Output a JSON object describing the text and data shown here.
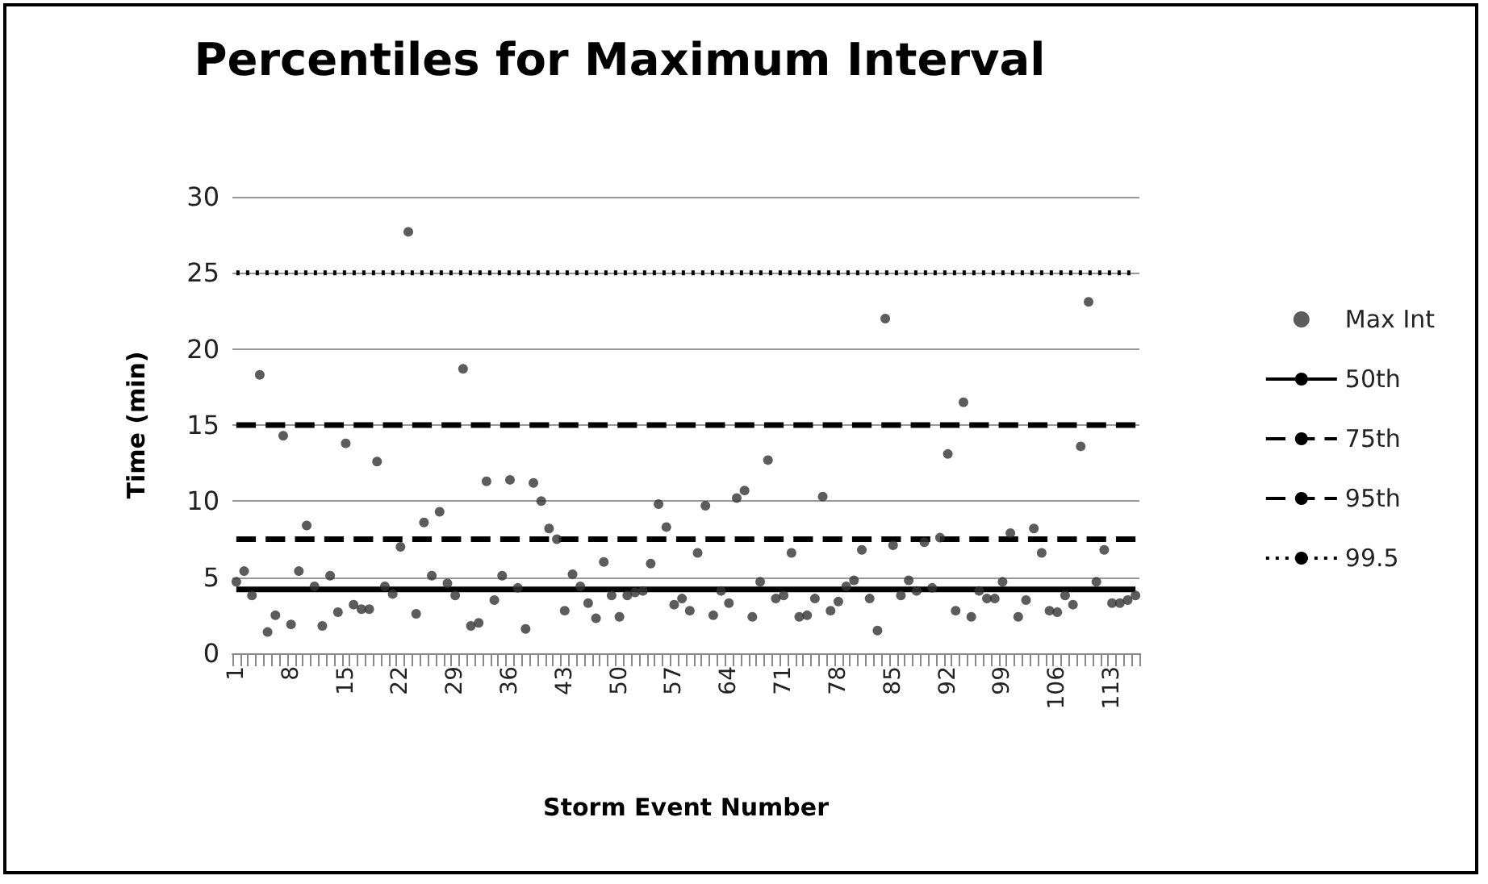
{
  "chart_data": {
    "type": "scatter",
    "title": "Percentiles for Maximum Interval",
    "xlabel": "Storm Event Number",
    "ylabel": "Time (min)",
    "categories": [
      "1",
      null,
      null,
      null,
      null,
      null,
      null,
      "8",
      null,
      null,
      null,
      null,
      null,
      null,
      "15",
      null,
      null,
      null,
      null,
      null,
      null,
      "22",
      null,
      null,
      null,
      null,
      null,
      null,
      "29",
      null,
      null,
      null,
      null,
      null,
      null,
      "36",
      null,
      null,
      null,
      null,
      null,
      null,
      "43",
      null,
      null,
      null,
      null,
      null,
      null,
      "50",
      null,
      null,
      null,
      null,
      null,
      null,
      "57",
      null,
      null,
      null,
      null,
      null,
      null,
      "64",
      null,
      null,
      null,
      null,
      null,
      null,
      "71",
      null,
      null,
      null,
      null,
      null,
      null,
      "78",
      null,
      null,
      null,
      null,
      null,
      null,
      "85",
      null,
      null,
      null,
      null,
      null,
      null,
      "92",
      null,
      null,
      null,
      null,
      null,
      null,
      "99",
      null,
      null,
      null,
      null,
      null,
      null,
      "106",
      null,
      null,
      null,
      null,
      null,
      null,
      "113",
      null,
      null,
      null
    ],
    "ylim": [
      0,
      30
    ],
    "yticks": [
      0,
      5,
      10,
      15,
      20,
      25,
      30
    ],
    "grid": "y",
    "legend": "right",
    "marker": "circle",
    "series": [
      {
        "name": "Max Int",
        "type": "scatter",
        "color": "#333333",
        "values": [
          4.7,
          5.4,
          3.8,
          18.3,
          1.4,
          2.5,
          14.3,
          1.9,
          5.4,
          8.4,
          4.4,
          1.8,
          5.1,
          2.7,
          13.8,
          3.2,
          2.9,
          2.9,
          12.6,
          4.4,
          3.9,
          7.0,
          27.7,
          2.6,
          8.6,
          5.1,
          9.3,
          4.6,
          3.8,
          18.7,
          1.8,
          2.0,
          11.3,
          3.5,
          5.1,
          11.4,
          4.3,
          1.6,
          11.2,
          10.0,
          8.2,
          7.5,
          2.8,
          5.2,
          4.4,
          3.3,
          2.3,
          6.0,
          3.8,
          2.4,
          3.8,
          4.0,
          4.1,
          5.9,
          9.8,
          8.3,
          3.2,
          3.6,
          2.8,
          6.6,
          9.7,
          2.5,
          4.1,
          3.3,
          10.2,
          10.7,
          2.4,
          4.7,
          12.7,
          3.6,
          3.8,
          6.6,
          2.4,
          2.5,
          3.6,
          10.3,
          2.8,
          3.4,
          4.4,
          4.8,
          6.8,
          3.6,
          1.5,
          22.0,
          7.1,
          3.8,
          4.8,
          4.1,
          7.3,
          4.3,
          7.6,
          13.1,
          2.8,
          16.5,
          2.4,
          4.1,
          3.6,
          3.6,
          4.7,
          7.9,
          2.4,
          3.5,
          8.2,
          6.6,
          2.8,
          2.7,
          3.8,
          3.2,
          13.6,
          23.1,
          4.7,
          6.8,
          3.3,
          3.3,
          3.5,
          3.8
        ]
      },
      {
        "name": "50th",
        "type": "line",
        "color": "#000000",
        "line_style": "solid",
        "marker": "none",
        "values": [
          4.2,
          4.2,
          4.2,
          4.2,
          4.2,
          4.2,
          4.2,
          4.2,
          4.2,
          4.2,
          4.2,
          4.2,
          4.2,
          4.2,
          4.2,
          4.2,
          4.2,
          4.2,
          4.2,
          4.2,
          4.2,
          4.2,
          4.2,
          4.2,
          4.2,
          4.2,
          4.2,
          4.2,
          4.2,
          4.2,
          4.2,
          4.2,
          4.2,
          4.2,
          4.2,
          4.2,
          4.2,
          4.2,
          4.2,
          4.2,
          4.2,
          4.2,
          4.2,
          4.2,
          4.2,
          4.2,
          4.2,
          4.2,
          4.2,
          4.2,
          4.2,
          4.2,
          4.2,
          4.2,
          4.2,
          4.2,
          4.2,
          4.2,
          4.2,
          4.2,
          4.2,
          4.2,
          4.2,
          4.2,
          4.2,
          4.2,
          4.2,
          4.2,
          4.2,
          4.2,
          4.2,
          4.2,
          4.2,
          4.2,
          4.2,
          4.2,
          4.2,
          4.2,
          4.2,
          4.2,
          4.2,
          4.2,
          4.2,
          4.2,
          4.2,
          4.2,
          4.2,
          4.2,
          4.2,
          4.2,
          4.2,
          4.2,
          4.2,
          4.2,
          4.2,
          4.2,
          4.2,
          4.2,
          4.2,
          4.2,
          4.2,
          4.2,
          4.2,
          4.2,
          4.2,
          4.2,
          4.2,
          4.2,
          4.2,
          4.2,
          4.2,
          4.2,
          4.2,
          4.2,
          4.2,
          4.2
        ]
      },
      {
        "name": "75th",
        "type": "line",
        "color": "#000000",
        "line_style": "dashed",
        "marker": "none",
        "values": [
          7.5,
          7.5,
          7.5,
          7.5,
          7.5,
          7.5,
          7.5,
          7.5,
          7.5,
          7.5,
          7.5,
          7.5,
          7.5,
          7.5,
          7.5,
          7.5,
          7.5,
          7.5,
          7.5,
          7.5,
          7.5,
          7.5,
          7.5,
          7.5,
          7.5,
          7.5,
          7.5,
          7.5,
          7.5,
          7.5,
          7.5,
          7.5,
          7.5,
          7.5,
          7.5,
          7.5,
          7.5,
          7.5,
          7.5,
          7.5,
          7.5,
          7.5,
          7.5,
          7.5,
          7.5,
          7.5,
          7.5,
          7.5,
          7.5,
          7.5,
          7.5,
          7.5,
          7.5,
          7.5,
          7.5,
          7.5,
          7.5,
          7.5,
          7.5,
          7.5,
          7.5,
          7.5,
          7.5,
          7.5,
          7.5,
          7.5,
          7.5,
          7.5,
          7.5,
          7.5,
          7.5,
          7.5,
          7.5,
          7.5,
          7.5,
          7.5,
          7.5,
          7.5,
          7.5,
          7.5,
          7.5,
          7.5,
          7.5,
          7.5,
          7.5,
          7.5,
          7.5,
          7.5,
          7.5,
          7.5,
          7.5,
          7.5,
          7.5,
          7.5,
          7.5,
          7.5,
          7.5,
          7.5,
          7.5,
          7.5,
          7.5,
          7.5,
          7.5,
          7.5,
          7.5,
          7.5,
          7.5,
          7.5,
          7.5,
          7.5,
          7.5,
          7.5,
          7.5,
          7.5,
          7.5,
          7.5
        ]
      },
      {
        "name": "95th",
        "type": "line",
        "color": "#000000",
        "line_style": "dashed",
        "marker": "none",
        "values": [
          15,
          15,
          15,
          15,
          15,
          15,
          15,
          15,
          15,
          15,
          15,
          15,
          15,
          15,
          15,
          15,
          15,
          15,
          15,
          15,
          15,
          15,
          15,
          15,
          15,
          15,
          15,
          15,
          15,
          15,
          15,
          15,
          15,
          15,
          15,
          15,
          15,
          15,
          15,
          15,
          15,
          15,
          15,
          15,
          15,
          15,
          15,
          15,
          15,
          15,
          15,
          15,
          15,
          15,
          15,
          15,
          15,
          15,
          15,
          15,
          15,
          15,
          15,
          15,
          15,
          15,
          15,
          15,
          15,
          15,
          15,
          15,
          15,
          15,
          15,
          15,
          15,
          15,
          15,
          15,
          15,
          15,
          15,
          15,
          15,
          15,
          15,
          15,
          15,
          15,
          15,
          15,
          15,
          15,
          15,
          15,
          15,
          15,
          15,
          15,
          15,
          15,
          15,
          15,
          15,
          15,
          15,
          15,
          15,
          15,
          15,
          15,
          15,
          15,
          15,
          15
        ]
      },
      {
        "name": "99.5",
        "type": "line",
        "color": "#000000",
        "line_style": "dotted",
        "marker": "none",
        "values": [
          25,
          25,
          25,
          25,
          25,
          25,
          25,
          25,
          25,
          25,
          25,
          25,
          25,
          25,
          25,
          25,
          25,
          25,
          25,
          25,
          25,
          25,
          25,
          25,
          25,
          25,
          25,
          25,
          25,
          25,
          25,
          25,
          25,
          25,
          25,
          25,
          25,
          25,
          25,
          25,
          25,
          25,
          25,
          25,
          25,
          25,
          25,
          25,
          25,
          25,
          25,
          25,
          25,
          25,
          25,
          25,
          25,
          25,
          25,
          25,
          25,
          25,
          25,
          25,
          25,
          25,
          25,
          25,
          25,
          25,
          25,
          25,
          25,
          25,
          25,
          25,
          25,
          25,
          25,
          25,
          25,
          25,
          25,
          25,
          25,
          25,
          25,
          25,
          25,
          25,
          25,
          25,
          25,
          25,
          25,
          25,
          25,
          25,
          25,
          25,
          25,
          25,
          25,
          25,
          25,
          25,
          25,
          25,
          25,
          25,
          25,
          25,
          25,
          25,
          25,
          25
        ]
      }
    ]
  }
}
